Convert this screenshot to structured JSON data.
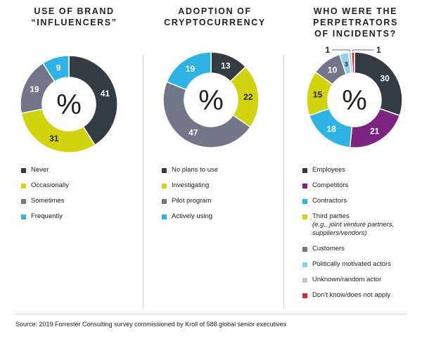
{
  "chart_data": [
    {
      "type": "pie",
      "title_lines": [
        "USE OF BRAND",
        "“INFLUENCERS”"
      ],
      "center_label": "%",
      "categories": [
        "Never",
        "Occasionally",
        "Sometimes",
        "Frequently"
      ],
      "values": [
        41,
        31,
        19,
        9
      ],
      "colors": [
        "#353b43",
        "#d1d40d",
        "#737589",
        "#2eb3e6"
      ],
      "legend": [
        {
          "label": "Never"
        },
        {
          "label": "Occasionally"
        },
        {
          "label": "Sometimes"
        },
        {
          "label": "Frequently"
        }
      ]
    },
    {
      "type": "pie",
      "title_lines": [
        "ADOPTION OF",
        "CRYPTOCURRENCY"
      ],
      "center_label": "%",
      "categories": [
        "No plans to use",
        "Investigating",
        "Pilot program",
        "Actively using"
      ],
      "values": [
        13,
        22,
        47,
        19
      ],
      "colors": [
        "#353b43",
        "#d1d40d",
        "#737589",
        "#2eb3e6"
      ],
      "legend": [
        {
          "label": "No plans to use"
        },
        {
          "label": "Investigating"
        },
        {
          "label": "Pilot program"
        },
        {
          "label": "Actively using"
        }
      ]
    },
    {
      "type": "pie",
      "title_lines": [
        "WHO WERE THE",
        "PERPETRATORS",
        "OF INCIDENTS?"
      ],
      "center_label": "%",
      "categories": [
        "Employees",
        "Competitors",
        "Contractors",
        "Third parties",
        "Customers",
        "Politically motivated actors",
        "Unknown/random actor",
        "Don't know/does not apply"
      ],
      "values": [
        30,
        21,
        18,
        15,
        10,
        3,
        1,
        1
      ],
      "colors": [
        "#353b43",
        "#7d2481",
        "#2eb3e6",
        "#d1d40d",
        "#737589",
        "#8ecfe9",
        "#c4c6c8",
        "#e0262b"
      ],
      "legend": [
        {
          "label": "Employees"
        },
        {
          "label": "Competitors"
        },
        {
          "label": "Contractors"
        },
        {
          "label": "Third parties",
          "sub": "(e.g., joint venture partners, suppliers/vendors)"
        },
        {
          "label": "Customers"
        },
        {
          "label": "Politically motivated actors"
        },
        {
          "label": "Unknown/random actor"
        },
        {
          "label": "Don't know/does not apply"
        }
      ]
    }
  ],
  "source": "Source: 2019 Forrester Consulting survey commissioned by Kroll of 588 global senior executives"
}
